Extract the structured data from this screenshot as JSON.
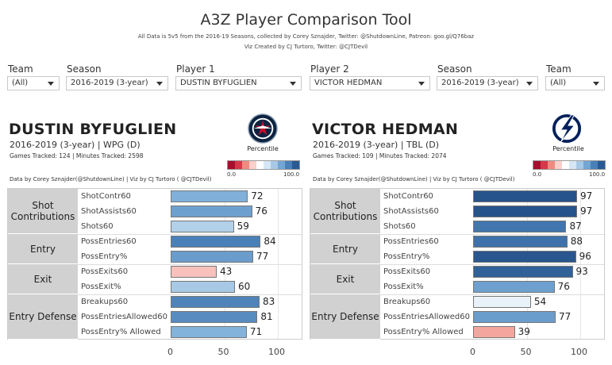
{
  "header": {
    "title": "A3Z Player Comparison Tool",
    "subtitle1": "All Data is 5v5 from the 2016-19 Seasons, collected by Corey Sznajder, Twitter: @ShutdownLine, Patreon: goo.gl/Q76baz",
    "subtitle2": "Viz Created by CJ Turtoro, Twitter: @CJTDevil"
  },
  "filters": {
    "team1": {
      "label": "Team",
      "value": "(All)"
    },
    "season1": {
      "label": "Season",
      "value": "2016-2019 (3-year)"
    },
    "player1": {
      "label": "Player 1",
      "value": "DUSTIN BYFUGLIEN"
    },
    "player2": {
      "label": "Player 2",
      "value": "VICTOR HEDMAN"
    },
    "season2": {
      "label": "Season",
      "value": "2016-2019 (3-year)"
    },
    "team2": {
      "label": "Team",
      "value": "(All)"
    }
  },
  "players": [
    {
      "name": "DUSTIN BYFUGLIEN",
      "info": "2016-2019 (3-year) | WPG (D)",
      "tracked": "Games Tracked: 124  | Minutes Tracked: 2598",
      "credit": "Data by Corey Sznajder(@ShutdownLine) | Viz by CJ Turtoro ( @CJTDevil)",
      "logo_icon": "jets-logo-icon",
      "percentile_label": "Percentile",
      "scale_min": "0.0",
      "scale_max": "100.0",
      "values": [
        72,
        76,
        59,
        84,
        77,
        43,
        60,
        83,
        81,
        71
      ]
    },
    {
      "name": "VICTOR HEDMAN",
      "info": "2016-2019 (3-year) | TBL (D)",
      "tracked": "Games Tracked: 109  | Minutes Tracked: 2074",
      "credit": "Data by Corey Sznajder(@ShutdownLine) | Viz by CJ Turtoro ( @CJTDevil)",
      "logo_icon": "lightning-logo-icon",
      "percentile_label": "Percentile",
      "scale_min": "0.0",
      "scale_max": "100.0",
      "values": [
        97,
        97,
        87,
        88,
        96,
        93,
        76,
        54,
        77,
        39
      ]
    }
  ],
  "categories": [
    {
      "name": "Shot\nContributions",
      "rows": 3
    },
    {
      "name": "Entry",
      "rows": 2
    },
    {
      "name": "Exit",
      "rows": 2
    },
    {
      "name": "Entry Defense",
      "rows": 3
    }
  ],
  "metrics": [
    "ShotContr60",
    "ShotAssists60",
    "Shots60",
    "PossEntries60",
    "PossEntry%",
    "PossExits60",
    "PossExit%",
    "Breakups60",
    "PossEntriesAllowed60",
    "PossEntry% Allowed"
  ],
  "axis_ticks": [
    0,
    50,
    100
  ],
  "colors": {
    "scale": [
      "#a50f2d",
      "#d7374a",
      "#f08a80",
      "#fbcfca",
      "#ffffff",
      "#d6e6f5",
      "#a8c9e6",
      "#74a6d4",
      "#4a80b8",
      "#2a5a94"
    ]
  }
}
